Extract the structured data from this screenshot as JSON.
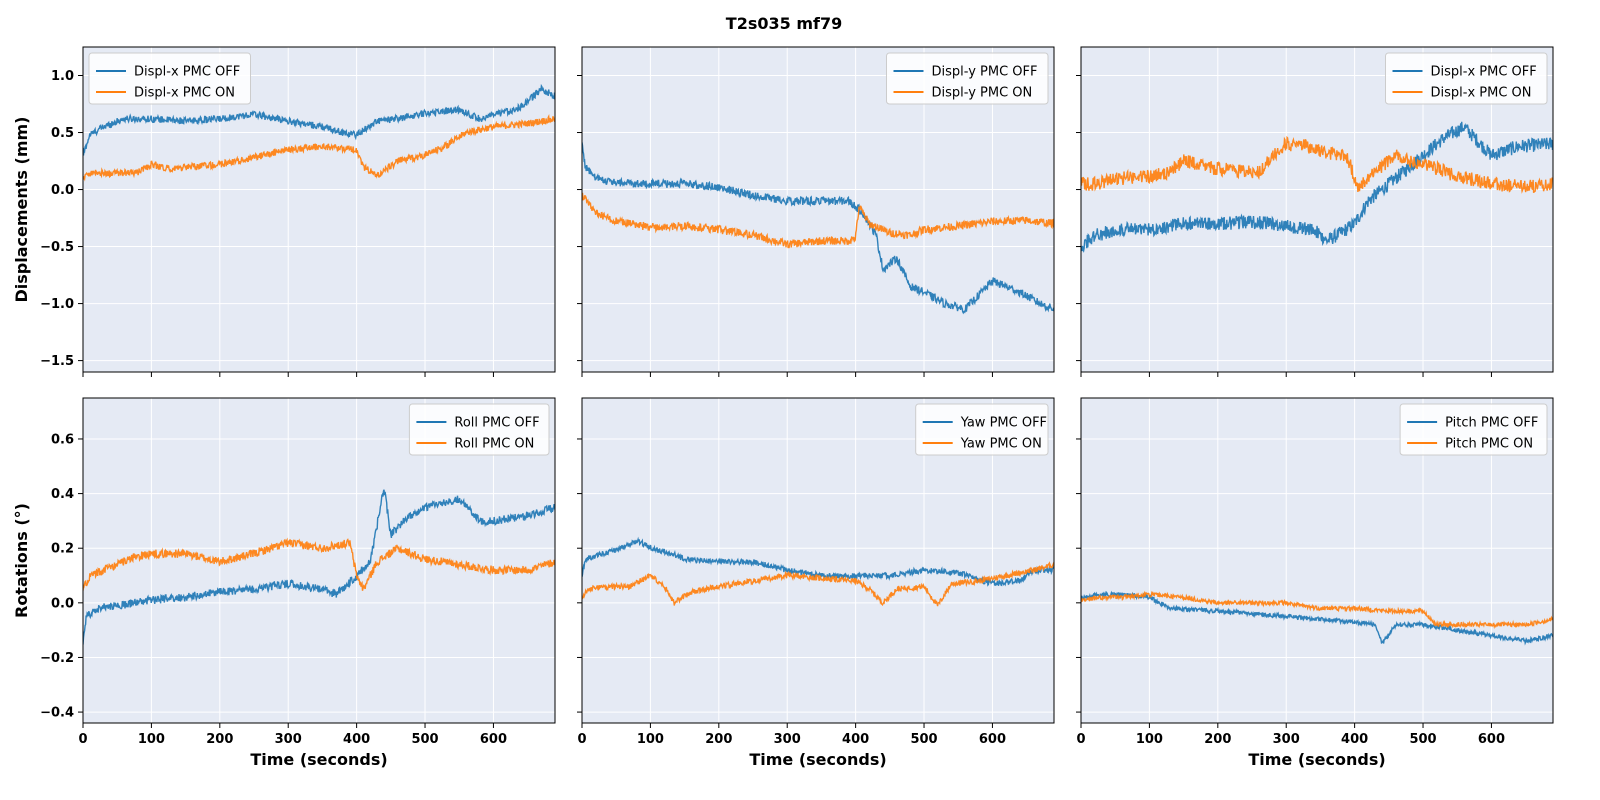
{
  "figure": {
    "title": "T2s035  mf79",
    "colors": {
      "off": "#1f77b4",
      "on": "#ff7f0e",
      "panel_bg": "#e5eaf4",
      "grid": "#ffffff"
    }
  },
  "chart_data": [
    {
      "type": "line",
      "title": "",
      "xlabel": "",
      "ylabel": "Displacements (mm)",
      "xlim": [
        0,
        690
      ],
      "ylim": [
        -1.6,
        1.25
      ],
      "xticks": [
        0,
        100,
        200,
        300,
        400,
        500,
        600
      ],
      "yticks": [
        -1.5,
        -1.0,
        -0.5,
        0.0,
        0.5,
        1.0
      ],
      "ytick_labels": [
        "−1.5",
        "−1.0",
        "−0.5",
        "0.0",
        "0.5",
        "1.0"
      ],
      "legend_position": "top-left",
      "grid": true,
      "noise": 0.03,
      "series": [
        {
          "name": "Displ-x PMC OFF",
          "color": "#1f77b4",
          "x": [
            0,
            10,
            30,
            60,
            100,
            150,
            200,
            250,
            300,
            350,
            380,
            400,
            430,
            460,
            500,
            550,
            580,
            600,
            640,
            670,
            690
          ],
          "y": [
            0.3,
            0.48,
            0.55,
            0.62,
            0.62,
            0.6,
            0.62,
            0.66,
            0.6,
            0.55,
            0.5,
            0.48,
            0.6,
            0.62,
            0.67,
            0.7,
            0.62,
            0.65,
            0.72,
            0.88,
            0.82
          ]
        },
        {
          "name": "Displ-x PMC ON",
          "color": "#ff7f0e",
          "x": [
            0,
            10,
            40,
            80,
            100,
            130,
            160,
            200,
            250,
            300,
            350,
            400,
            410,
            430,
            460,
            500,
            530,
            560,
            600,
            650,
            690
          ],
          "y": [
            0.1,
            0.15,
            0.14,
            0.15,
            0.22,
            0.18,
            0.2,
            0.22,
            0.28,
            0.35,
            0.38,
            0.35,
            0.2,
            0.12,
            0.25,
            0.3,
            0.38,
            0.5,
            0.55,
            0.58,
            0.62
          ]
        }
      ]
    },
    {
      "type": "line",
      "title": "",
      "xlabel": "",
      "ylabel": "",
      "xlim": [
        0,
        690
      ],
      "ylim": [
        -1.6,
        1.25
      ],
      "xticks": [
        0,
        100,
        200,
        300,
        400,
        500,
        600
      ],
      "yticks": [
        -1.5,
        -1.0,
        -0.5,
        0.0,
        0.5,
        1.0
      ],
      "legend_position": "top-right",
      "grid": true,
      "noise": 0.035,
      "series": [
        {
          "name": "Displ-y PMC OFF",
          "color": "#1f77b4",
          "x": [
            0,
            5,
            20,
            50,
            100,
            150,
            200,
            250,
            300,
            350,
            390,
            410,
            430,
            440,
            460,
            480,
            500,
            530,
            560,
            600,
            640,
            670,
            690
          ],
          "y": [
            0.4,
            0.2,
            0.1,
            0.06,
            0.05,
            0.05,
            0.02,
            -0.05,
            -0.1,
            -0.1,
            -0.1,
            -0.2,
            -0.4,
            -0.7,
            -0.6,
            -0.85,
            -0.9,
            -1.0,
            -1.05,
            -0.8,
            -0.9,
            -1.0,
            -1.05
          ]
        },
        {
          "name": "Displ-y PMC ON",
          "color": "#ff7f0e",
          "x": [
            0,
            20,
            50,
            100,
            150,
            200,
            250,
            300,
            350,
            390,
            400,
            405,
            420,
            450,
            480,
            500,
            550,
            600,
            650,
            690
          ],
          "y": [
            -0.05,
            -0.2,
            -0.28,
            -0.33,
            -0.32,
            -0.35,
            -0.4,
            -0.48,
            -0.45,
            -0.45,
            -0.42,
            -0.15,
            -0.3,
            -0.38,
            -0.4,
            -0.35,
            -0.32,
            -0.28,
            -0.27,
            -0.3
          ]
        }
      ]
    },
    {
      "type": "line",
      "title": "",
      "xlabel": "",
      "ylabel": "",
      "xlim": [
        0,
        690
      ],
      "ylim": [
        -1.6,
        1.25
      ],
      "xticks": [
        0,
        100,
        200,
        300,
        400,
        500,
        600
      ],
      "yticks": [
        -1.5,
        -1.0,
        -0.5,
        0.0,
        0.5,
        1.0
      ],
      "legend_position": "top-right",
      "grid": true,
      "noise": 0.06,
      "series": [
        {
          "name": "Displ-x PMC OFF",
          "color": "#1f77b4",
          "x": [
            0,
            20,
            60,
            100,
            150,
            200,
            250,
            300,
            340,
            360,
            380,
            400,
            420,
            440,
            460,
            500,
            530,
            560,
            600,
            640,
            690
          ],
          "y": [
            -0.5,
            -0.4,
            -0.35,
            -0.35,
            -0.3,
            -0.3,
            -0.28,
            -0.32,
            -0.35,
            -0.45,
            -0.38,
            -0.3,
            -0.1,
            0.0,
            0.1,
            0.3,
            0.45,
            0.55,
            0.3,
            0.38,
            0.4
          ]
        },
        {
          "name": "Displ-x PMC ON",
          "color": "#ff7f0e",
          "x": [
            0,
            20,
            60,
            100,
            130,
            150,
            200,
            260,
            280,
            300,
            330,
            360,
            390,
            405,
            420,
            440,
            460,
            500,
            550,
            600,
            650,
            690
          ],
          "y": [
            0.05,
            0.05,
            0.1,
            0.12,
            0.15,
            0.25,
            0.18,
            0.15,
            0.3,
            0.4,
            0.38,
            0.32,
            0.28,
            0.0,
            0.12,
            0.2,
            0.3,
            0.22,
            0.12,
            0.05,
            0.02,
            0.05
          ]
        }
      ]
    },
    {
      "type": "line",
      "title": "",
      "xlabel": "Time (seconds)",
      "ylabel": "Rotations (°)",
      "xlim": [
        0,
        690
      ],
      "ylim": [
        -0.44,
        0.75
      ],
      "xticks": [
        0,
        100,
        200,
        300,
        400,
        500,
        600
      ],
      "yticks": [
        -0.4,
        -0.2,
        0.0,
        0.2,
        0.4,
        0.6
      ],
      "ytick_labels": [
        "−0.4",
        "−0.2",
        "0.0",
        "0.2",
        "0.4",
        "0.6"
      ],
      "legend_position": "top-right",
      "grid": true,
      "noise": 0.015,
      "series": [
        {
          "name": "Roll PMC OFF",
          "color": "#1f77b4",
          "x": [
            0,
            5,
            20,
            50,
            100,
            150,
            200,
            250,
            300,
            350,
            370,
            400,
            420,
            440,
            450,
            470,
            500,
            550,
            580,
            600,
            650,
            690
          ],
          "y": [
            -0.15,
            -0.05,
            -0.02,
            -0.01,
            0.01,
            0.02,
            0.04,
            0.05,
            0.07,
            0.05,
            0.03,
            0.1,
            0.15,
            0.42,
            0.25,
            0.3,
            0.35,
            0.38,
            0.3,
            0.3,
            0.32,
            0.35
          ]
        },
        {
          "name": "Roll PMC ON",
          "color": "#ff7f0e",
          "x": [
            0,
            10,
            40,
            80,
            100,
            150,
            200,
            250,
            300,
            350,
            390,
            400,
            410,
            430,
            460,
            480,
            500,
            550,
            600,
            650,
            690
          ],
          "y": [
            0.05,
            0.1,
            0.13,
            0.17,
            0.18,
            0.18,
            0.15,
            0.18,
            0.22,
            0.2,
            0.22,
            0.1,
            0.05,
            0.15,
            0.2,
            0.18,
            0.16,
            0.14,
            0.12,
            0.12,
            0.15
          ]
        }
      ]
    },
    {
      "type": "line",
      "title": "",
      "xlabel": "Time (seconds)",
      "ylabel": "",
      "xlim": [
        0,
        690
      ],
      "ylim": [
        -0.44,
        0.75
      ],
      "xticks": [
        0,
        100,
        200,
        300,
        400,
        500,
        600
      ],
      "yticks": [
        -0.4,
        -0.2,
        0.0,
        0.2,
        0.4,
        0.6
      ],
      "legend_position": "top-right",
      "grid": true,
      "noise": 0.01,
      "series": [
        {
          "name": "Yaw PMC OFF",
          "color": "#1f77b4",
          "x": [
            0,
            5,
            30,
            60,
            80,
            100,
            130,
            150,
            200,
            250,
            300,
            350,
            400,
            450,
            500,
            550,
            600,
            640,
            660,
            690
          ],
          "y": [
            0.1,
            0.16,
            0.18,
            0.2,
            0.23,
            0.2,
            0.18,
            0.16,
            0.15,
            0.15,
            0.12,
            0.1,
            0.1,
            0.1,
            0.12,
            0.11,
            0.07,
            0.08,
            0.12,
            0.12
          ]
        },
        {
          "name": "Yaw PMC ON",
          "color": "#ff7f0e",
          "x": [
            0,
            10,
            40,
            70,
            100,
            120,
            135,
            160,
            200,
            250,
            300,
            350,
            400,
            420,
            440,
            460,
            500,
            520,
            540,
            580,
            620,
            660,
            690
          ],
          "y": [
            0.02,
            0.05,
            0.06,
            0.06,
            0.1,
            0.06,
            0.0,
            0.04,
            0.06,
            0.08,
            0.1,
            0.09,
            0.08,
            0.05,
            0.0,
            0.05,
            0.06,
            -0.01,
            0.07,
            0.08,
            0.1,
            0.12,
            0.14
          ]
        }
      ]
    },
    {
      "type": "line",
      "title": "",
      "xlabel": "Time (seconds)",
      "ylabel": "",
      "xlim": [
        0,
        690
      ],
      "ylim": [
        -0.44,
        0.75
      ],
      "xticks": [
        0,
        100,
        200,
        300,
        400,
        500,
        600
      ],
      "yticks": [
        -0.4,
        -0.2,
        0.0,
        0.2,
        0.4,
        0.6
      ],
      "legend_position": "top-right",
      "grid": true,
      "noise": 0.008,
      "series": [
        {
          "name": "Pitch PMC OFF",
          "color": "#1f77b4",
          "x": [
            0,
            30,
            60,
            100,
            130,
            200,
            250,
            300,
            350,
            400,
            430,
            440,
            460,
            500,
            550,
            600,
            650,
            690
          ],
          "y": [
            0.02,
            0.03,
            0.03,
            0.02,
            -0.02,
            -0.03,
            -0.04,
            -0.05,
            -0.06,
            -0.07,
            -0.08,
            -0.15,
            -0.08,
            -0.08,
            -0.1,
            -0.12,
            -0.14,
            -0.12
          ]
        },
        {
          "name": "Pitch PMC ON",
          "color": "#ff7f0e",
          "x": [
            0,
            30,
            60,
            100,
            150,
            200,
            250,
            300,
            320,
            350,
            400,
            450,
            500,
            520,
            560,
            600,
            650,
            690
          ],
          "y": [
            0.01,
            0.02,
            0.02,
            0.03,
            0.02,
            0.0,
            0.0,
            0.0,
            -0.01,
            -0.02,
            -0.02,
            -0.03,
            -0.03,
            -0.08,
            -0.08,
            -0.08,
            -0.08,
            -0.06
          ]
        }
      ]
    }
  ]
}
